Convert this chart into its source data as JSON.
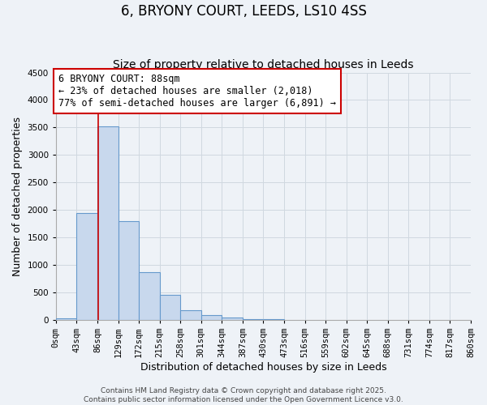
{
  "title": "6, BRYONY COURT, LEEDS, LS10 4SS",
  "subtitle": "Size of property relative to detached houses in Leeds",
  "xlabel": "Distribution of detached houses by size in Leeds",
  "ylabel": "Number of detached properties",
  "bin_edges": [
    0,
    43,
    86,
    129,
    172,
    215,
    258,
    301,
    344,
    387,
    430,
    473,
    516,
    559,
    602,
    645,
    688,
    731,
    774,
    817,
    860
  ],
  "bar_heights": [
    30,
    1950,
    3520,
    1800,
    870,
    460,
    175,
    85,
    50,
    20,
    10,
    0,
    0,
    0,
    0,
    0,
    0,
    0,
    0,
    0
  ],
  "bar_color": "#c8d8ed",
  "bar_edge_color": "#6699cc",
  "property_size": 88,
  "red_line_color": "#cc0000",
  "annotation_text": "6 BRYONY COURT: 88sqm\n← 23% of detached houses are smaller (2,018)\n77% of semi-detached houses are larger (6,891) →",
  "annotation_box_facecolor": "#ffffff",
  "annotation_box_edgecolor": "#cc0000",
  "ylim": [
    0,
    4500
  ],
  "yticks": [
    0,
    500,
    1000,
    1500,
    2000,
    2500,
    3000,
    3500,
    4000,
    4500
  ],
  "tick_labels": [
    "0sqm",
    "43sqm",
    "86sqm",
    "129sqm",
    "172sqm",
    "215sqm",
    "258sqm",
    "301sqm",
    "344sqm",
    "387sqm",
    "430sqm",
    "473sqm",
    "516sqm",
    "559sqm",
    "602sqm",
    "645sqm",
    "688sqm",
    "731sqm",
    "774sqm",
    "817sqm",
    "860sqm"
  ],
  "background_color": "#eef2f7",
  "plot_bg_color": "#eef2f7",
  "grid_color": "#d0d8e0",
  "footer_line1": "Contains HM Land Registry data © Crown copyright and database right 2025.",
  "footer_line2": "Contains public sector information licensed under the Open Government Licence v3.0.",
  "title_fontsize": 12,
  "subtitle_fontsize": 10,
  "axis_label_fontsize": 9,
  "tick_fontsize": 7.5,
  "annotation_fontsize": 8.5,
  "footer_fontsize": 6.5
}
